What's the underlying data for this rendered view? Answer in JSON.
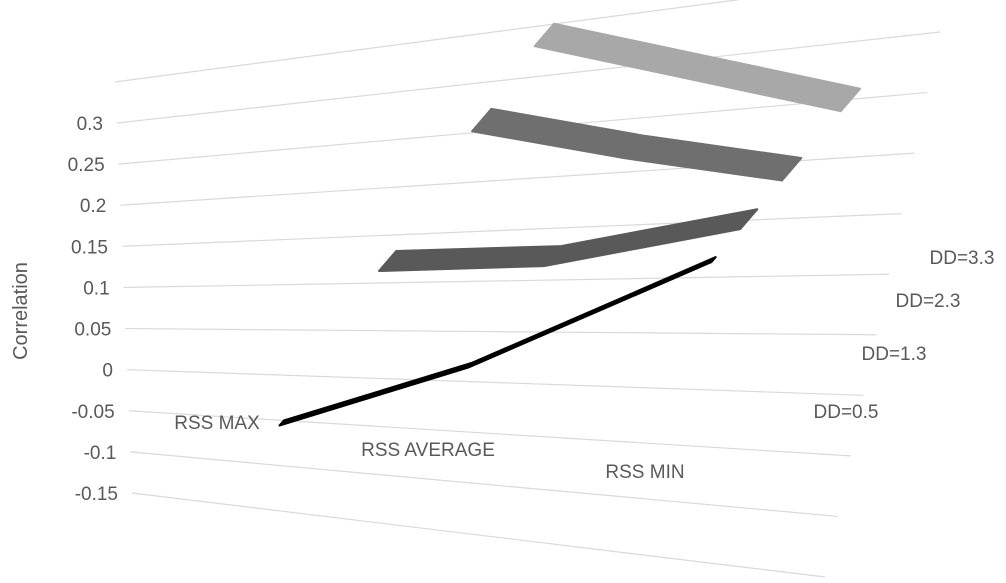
{
  "chart_data": {
    "type": "line",
    "ylabel": "Correlation",
    "yticks": [
      "0.3",
      "0.25",
      "0.2",
      "0.15",
      "0.1",
      "0.05",
      "0",
      "-0.05",
      "-0.1",
      "-0.15"
    ],
    "ylim": [
      -0.15,
      0.3
    ],
    "categories": [
      "RSS MAX",
      "RSS AVERAGE",
      "RSS MIN"
    ],
    "series": [
      {
        "name": "DD=0.5",
        "values": [
          -0.1,
          -0.01,
          0.22
        ]
      },
      {
        "name": "DD=1.3",
        "values": [
          0.06,
          0.09,
          0.2
        ]
      },
      {
        "name": "DD=2.3",
        "values": [
          0.19,
          0.19,
          0.2
        ]
      },
      {
        "name": "DD=3.3",
        "values": [
          0.24,
          0.24,
          0.24
        ]
      }
    ],
    "colors": {
      "DD=0.5": "#000000",
      "DD=1.3": "#595959",
      "DD=2.3": "#6f6f6f",
      "DD=3.3": "#a8a8a8"
    },
    "grid": true,
    "projection": "3d",
    "legend": "depth-axis-right"
  }
}
